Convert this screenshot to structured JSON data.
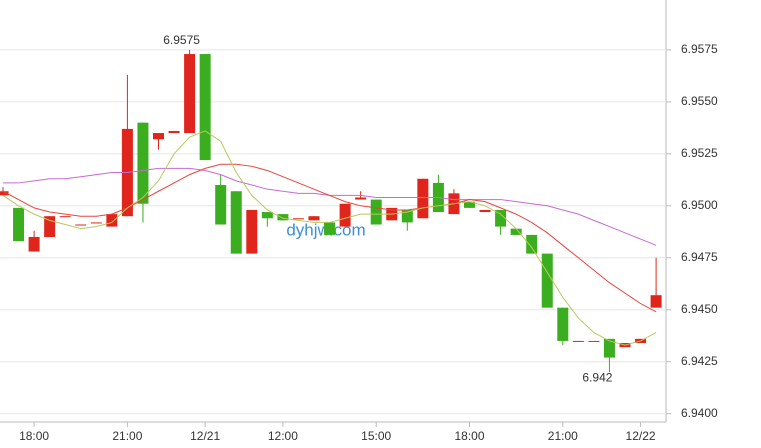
{
  "chart_data": {
    "type": "candlestick",
    "categories": [
      null,
      null,
      "18:00",
      null,
      null,
      null,
      null,
      null,
      "21:00",
      null,
      null,
      null,
      null,
      "12/21",
      null,
      null,
      null,
      null,
      "12:00",
      null,
      null,
      null,
      null,
      null,
      "15:00",
      null,
      null,
      null,
      null,
      null,
      "18:00",
      null,
      null,
      null,
      null,
      null,
      "21:00",
      null,
      null,
      null,
      null,
      "12/22",
      null
    ],
    "open": [
      6.9505,
      6.9499,
      6.9478,
      6.9485,
      6.9495,
      6.9491,
      6.9492,
      6.949,
      6.9495,
      6.954,
      6.9532,
      6.9535,
      6.9535,
      6.9573,
      6.951,
      6.9507,
      6.9477,
      6.9497,
      6.9496,
      6.9494,
      6.9493,
      6.9492,
      6.949,
      6.9503,
      6.9503,
      6.9493,
      6.9498,
      6.9494,
      6.9511,
      6.9496,
      6.9502,
      6.9497,
      6.9498,
      6.9489,
      6.9486,
      6.9477,
      6.9451,
      6.9435,
      6.9435,
      6.9436,
      6.9432,
      6.9434,
      6.9451
    ],
    "high": [
      6.9509,
      6.9499,
      6.9488,
      6.9495,
      6.9495,
      6.9491,
      6.9492,
      6.9496,
      6.9563,
      6.954,
      6.9535,
      6.9536,
      6.9575,
      6.9573,
      6.9515,
      6.9507,
      6.9498,
      6.9497,
      6.9496,
      6.9494,
      6.9495,
      6.9492,
      6.9501,
      6.9507,
      6.9503,
      6.9499,
      6.9498,
      6.9513,
      6.9515,
      6.9508,
      6.9502,
      6.9498,
      6.9498,
      6.9489,
      6.9486,
      6.9477,
      6.9451,
      6.9435,
      6.9435,
      6.9436,
      6.9434,
      6.9436,
      6.9475
    ],
    "low": [
      6.9505,
      6.9483,
      6.9478,
      6.9485,
      6.9495,
      6.9491,
      6.9492,
      6.949,
      6.9495,
      6.9492,
      6.9527,
      6.9535,
      6.9535,
      6.9522,
      6.9491,
      6.9477,
      6.9477,
      6.949,
      6.9493,
      6.9494,
      6.9493,
      6.9486,
      6.949,
      6.9503,
      6.9491,
      6.9493,
      6.9488,
      6.9494,
      6.9497,
      6.9496,
      6.9499,
      6.9497,
      6.9486,
      6.9486,
      6.9477,
      6.9451,
      6.9433,
      6.9435,
      6.9435,
      6.942,
      6.9432,
      6.9434,
      6.9451
    ],
    "close": [
      6.9507,
      6.9483,
      6.9485,
      6.9495,
      6.9495,
      6.9491,
      6.9492,
      6.9496,
      6.9537,
      6.9501,
      6.9535,
      6.9536,
      6.9573,
      6.9522,
      6.9491,
      6.9477,
      6.9498,
      6.9494,
      6.9493,
      6.9494,
      6.9495,
      6.9486,
      6.9501,
      6.9504,
      6.9491,
      6.9499,
      6.9492,
      6.9513,
      6.9497,
      6.9506,
      6.9499,
      6.9498,
      6.949,
      6.9486,
      6.9477,
      6.9451,
      6.9435,
      6.9435,
      6.9435,
      6.9427,
      6.9434,
      6.9436,
      6.9457
    ],
    "up_color": "#e0261c",
    "down_color": "#3aae1f",
    "overlays": [
      {
        "color": "#c66bd0",
        "values": [
          6.9511,
          6.9511,
          6.9512,
          6.9513,
          6.9513,
          6.9514,
          6.9515,
          6.9516,
          6.9516,
          6.9517,
          6.9518,
          6.9518,
          6.9518,
          6.9517,
          6.9515,
          6.9512,
          6.951,
          6.9508,
          6.9507,
          6.9506,
          6.9506,
          6.9505,
          6.9505,
          6.9505,
          6.9504,
          6.9504,
          6.9504,
          6.9504,
          6.9504,
          6.9503,
          6.9503,
          6.9503,
          6.9503,
          6.9502,
          6.9501,
          6.95,
          6.9498,
          6.9496,
          6.9493,
          6.949,
          6.9487,
          6.9484,
          6.9481
        ]
      },
      {
        "color": "#e8453c",
        "values": [
          6.9507,
          6.9503,
          6.9499,
          6.9497,
          6.9496,
          6.9495,
          6.9495,
          6.9496,
          6.9499,
          6.9503,
          6.9507,
          6.9511,
          6.9515,
          6.9518,
          6.952,
          6.952,
          6.9519,
          6.9517,
          6.9514,
          6.9511,
          6.9508,
          6.9505,
          6.9502,
          6.95,
          6.9499,
          6.9498,
          6.9498,
          6.9499,
          6.95,
          6.9501,
          6.9503,
          6.9502,
          6.9499,
          6.9496,
          6.9492,
          6.9487,
          6.9481,
          6.9475,
          6.9469,
          6.9463,
          6.9458,
          6.9453,
          6.9449
        ]
      },
      {
        "color": "#b9c95a",
        "values": [
          6.9505,
          6.95,
          6.9496,
          6.9493,
          6.9491,
          6.9489,
          6.949,
          6.9492,
          6.9499,
          6.9504,
          6.9512,
          6.9525,
          6.9533,
          6.9536,
          6.9531,
          6.9516,
          6.9505,
          6.9498,
          6.9494,
          6.9493,
          6.9492,
          6.9492,
          6.9494,
          6.9496,
          6.9496,
          6.9496,
          6.9497,
          6.9499,
          6.95,
          6.9501,
          6.9502,
          6.95,
          6.9496,
          6.9489,
          6.948,
          6.9468,
          6.9456,
          6.9446,
          6.9439,
          6.9435,
          6.9433,
          6.9435,
          6.9439
        ]
      }
    ],
    "max_label": "6.9575",
    "min_label": "6.942",
    "watermark": "dyhjw.com",
    "ylim": [
      6.9396,
      6.9599
    ],
    "yticks": [
      {
        "value": 6.94,
        "label": "6.9400"
      },
      6.9425,
      {
        "value": 6.945,
        "label": "6.9450"
      },
      6.9475,
      {
        "value": 6.95,
        "label": "6.9500"
      },
      6.9525,
      {
        "value": 6.955,
        "label": "6.9550"
      },
      6.9575
    ],
    "grid": true
  }
}
